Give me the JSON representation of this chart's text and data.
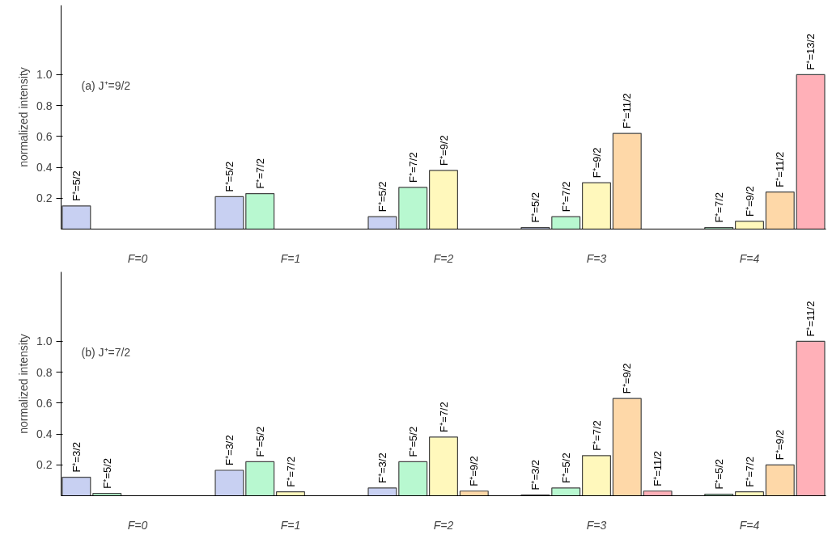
{
  "chart_data": [
    {
      "type": "bar",
      "categories": [
        "F=0",
        "F=1",
        "F=2",
        "F=3",
        "F=4"
      ],
      "ylabel": "normalized intensity",
      "annotations": [
        "(a)   J⁺=9/2"
      ],
      "ylim": [
        0,
        1.45
      ],
      "yticks": [
        0.2,
        0.4,
        0.6,
        0.8,
        {
          "value": 1.0,
          "label": "1.0"
        }
      ],
      "grid": false,
      "series": [
        {
          "name": "F⁺=5/2",
          "color": "#c8d0f2",
          "values": [
            0.15,
            0.21,
            0.08,
            0.01,
            null
          ]
        },
        {
          "name": "F⁺=7/2",
          "color": "#b8f8d0",
          "values": [
            null,
            0.23,
            0.27,
            0.08,
            0.01
          ]
        },
        {
          "name": "F⁺=9/2",
          "color": "#fff8bc",
          "values": [
            null,
            null,
            0.38,
            0.3,
            0.05
          ]
        },
        {
          "name": "F⁺=11/2",
          "color": "#fed8a8",
          "values": [
            null,
            null,
            null,
            0.62,
            0.24
          ]
        },
        {
          "name": "F⁺=13/2",
          "color": "#ffb0b8",
          "values": [
            null,
            null,
            null,
            null,
            1.0
          ]
        }
      ]
    },
    {
      "type": "bar",
      "categories": [
        "F=0",
        "F=1",
        "F=2",
        "F=3",
        "F=4"
      ],
      "ylabel": "normalized intensity",
      "annotations": [
        "(b)   J⁺=7/2"
      ],
      "ylim": [
        0,
        1.45
      ],
      "yticks": [
        0.2,
        0.4,
        0.6,
        0.8,
        {
          "value": 1.0,
          "label": "1.0"
        }
      ],
      "grid": false,
      "series": [
        {
          "name": "F⁺=3/2",
          "color": "#c8d0f2",
          "values": [
            0.12,
            0.165,
            0.05,
            0.005,
            null
          ]
        },
        {
          "name": "F⁺=5/2",
          "color": "#b8f8d0",
          "values": [
            0.015,
            0.22,
            0.22,
            0.05,
            0.01
          ]
        },
        {
          "name": "F⁺=7/2",
          "color": "#fff8bc",
          "values": [
            null,
            0.025,
            0.38,
            0.26,
            0.025
          ]
        },
        {
          "name": "F⁺=9/2",
          "color": "#fed8a8",
          "values": [
            null,
            null,
            0.03,
            0.63,
            0.2
          ]
        },
        {
          "name": "F⁺=11/2",
          "color": "#ffb0b8",
          "values": [
            null,
            null,
            null,
            0.03,
            1.0
          ]
        }
      ]
    }
  ]
}
